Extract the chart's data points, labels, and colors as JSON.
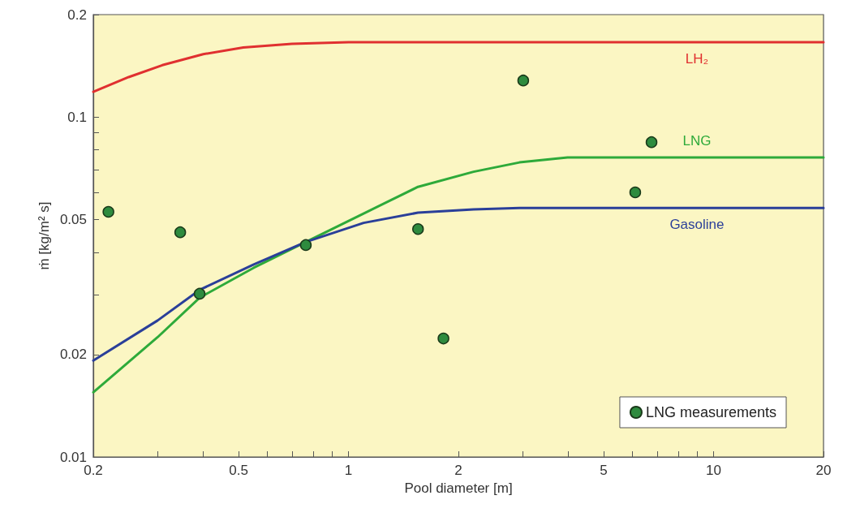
{
  "chart_data": {
    "type": "line",
    "xlabel": "Pool diameter [m]",
    "ylabel": "ṁ [kg/m² s]",
    "log": "xy",
    "xlim": [
      0.2,
      20
    ],
    "ylim": [
      0.01,
      0.2
    ],
    "xticks": [
      0.2,
      {
        "value": 0.3,
        "label": null
      },
      {
        "value": 0.4,
        "label": null
      },
      0.5,
      {
        "value": 0.6,
        "label": null
      },
      {
        "value": 0.7,
        "label": null
      },
      {
        "value": 0.8,
        "label": null
      },
      {
        "value": 0.9,
        "label": null
      },
      1,
      2,
      {
        "value": 3,
        "label": null
      },
      {
        "value": 4,
        "label": null
      },
      5,
      {
        "value": 6,
        "label": null
      },
      {
        "value": 7,
        "label": null
      },
      {
        "value": 8,
        "label": null
      },
      {
        "value": 9,
        "label": null
      },
      10,
      20
    ],
    "yticks": [
      0.01,
      0.02,
      {
        "value": 0.03,
        "label": null
      },
      {
        "value": 0.04,
        "label": null
      },
      0.05,
      {
        "value": 0.06,
        "label": null
      },
      {
        "value": 0.07,
        "label": null
      },
      {
        "value": 0.08,
        "label": null
      },
      {
        "value": 0.09,
        "label": null
      },
      0.1,
      0.2
    ],
    "grid": false,
    "legend": "bottom right",
    "line_style": "solid",
    "series": [
      {
        "name": "LH₂",
        "marker": "none",
        "color": "#e03030",
        "x": [
          0.2,
          0.25,
          0.309,
          0.4,
          0.515,
          0.7,
          1,
          2,
          5,
          9,
          20
        ],
        "values": [
          0.1186,
          0.131,
          0.142,
          0.153,
          0.16,
          0.164,
          0.166,
          0.166,
          0.166,
          0.166,
          0.166
        ]
      },
      {
        "name": "LNG",
        "marker": "none",
        "color": "#2eaa3a",
        "x": [
          0.2,
          0.3,
          0.391,
          0.55,
          0.764,
          1.1,
          1.55,
          2.2,
          2.94,
          3.98,
          9,
          20
        ],
        "values": [
          0.0155,
          0.0225,
          0.0294,
          0.036,
          0.0429,
          0.052,
          0.0623,
          0.069,
          0.0735,
          0.076,
          0.076,
          0.076
        ]
      },
      {
        "name": "Gasoline",
        "marker": "none",
        "color": "#2a3f99",
        "x": [
          0.2,
          0.3,
          0.391,
          0.55,
          0.764,
          1.1,
          1.55,
          2.2,
          2.94,
          9,
          20
        ],
        "values": [
          0.0192,
          0.0252,
          0.031,
          0.0368,
          0.0429,
          0.0488,
          0.0523,
          0.0535,
          0.054,
          0.054,
          0.054
        ]
      },
      {
        "name": "LNG measurements",
        "type": "scatter",
        "marker": "circle",
        "color": "#2e8b3e",
        "x": [
          0.22,
          0.346,
          0.391,
          0.764,
          1.55,
          1.82,
          3.01,
          6.1,
          6.76
        ],
        "values": [
          0.0526,
          0.0458,
          0.0302,
          0.042,
          0.0468,
          0.0223,
          0.128,
          0.06,
          0.0843
        ]
      }
    ]
  }
}
